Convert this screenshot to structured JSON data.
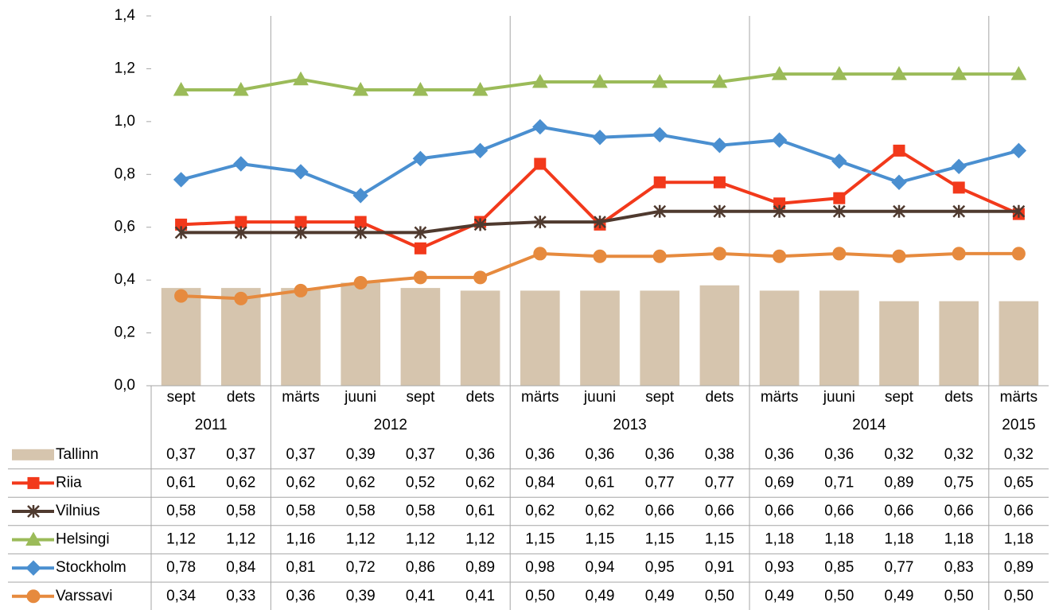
{
  "chart_data": {
    "type": "combo",
    "groups": [
      {
        "label": "2011",
        "categories": [
          "sept",
          "dets"
        ]
      },
      {
        "label": "2012",
        "categories": [
          "märts",
          "juuni",
          "sept",
          "dets"
        ]
      },
      {
        "label": "2013",
        "categories": [
          "märts",
          "juuni",
          "sept",
          "dets"
        ]
      },
      {
        "label": "2014",
        "categories": [
          "märts",
          "juuni",
          "sept",
          "dets"
        ]
      },
      {
        "label": "2015",
        "categories": [
          "märts"
        ]
      }
    ],
    "ylim": [
      0,
      1.4
    ],
    "yticks": [
      {
        "value": 0,
        "label": "0,0"
      },
      {
        "value": 0.2,
        "label": "0,2"
      },
      {
        "value": 0.4,
        "label": "0,4"
      },
      {
        "value": 0.6,
        "label": "0,6"
      },
      {
        "value": 0.8,
        "label": "0,8"
      },
      {
        "value": 1.0,
        "label": "1,0"
      },
      {
        "value": 1.2,
        "label": "1,2"
      },
      {
        "value": 1.4,
        "label": "1,4"
      }
    ],
    "series": [
      {
        "name": "Tallinn",
        "type": "bar",
        "color": "#d6c5ae",
        "values": [
          0.37,
          0.37,
          0.37,
          0.39,
          0.37,
          0.36,
          0.36,
          0.36,
          0.36,
          0.38,
          0.36,
          0.36,
          0.32,
          0.32,
          0.32
        ],
        "value_labels": [
          "0,37",
          "0,37",
          "0,37",
          "0,39",
          "0,37",
          "0,36",
          "0,36",
          "0,36",
          "0,36",
          "0,38",
          "0,36",
          "0,36",
          "0,32",
          "0,32",
          "0,32"
        ]
      },
      {
        "name": "Riia",
        "type": "line",
        "marker": "square",
        "color": "#f2391b",
        "values": [
          0.61,
          0.62,
          0.62,
          0.62,
          0.52,
          0.62,
          0.84,
          0.61,
          0.77,
          0.77,
          0.69,
          0.71,
          0.89,
          0.75,
          0.65
        ],
        "value_labels": [
          "0,61",
          "0,62",
          "0,62",
          "0,62",
          "0,52",
          "0,62",
          "0,84",
          "0,61",
          "0,77",
          "0,77",
          "0,69",
          "0,71",
          "0,89",
          "0,75",
          "0,65"
        ]
      },
      {
        "name": "Vilnius",
        "type": "line",
        "marker": "star",
        "color": "#4f3a2f",
        "values": [
          0.58,
          0.58,
          0.58,
          0.58,
          0.58,
          0.61,
          0.62,
          0.62,
          0.66,
          0.66,
          0.66,
          0.66,
          0.66,
          0.66,
          0.66
        ],
        "value_labels": [
          "0,58",
          "0,58",
          "0,58",
          "0,58",
          "0,58",
          "0,61",
          "0,62",
          "0,62",
          "0,66",
          "0,66",
          "0,66",
          "0,66",
          "0,66",
          "0,66",
          "0,66"
        ]
      },
      {
        "name": "Helsingi",
        "type": "line",
        "marker": "triangle",
        "color": "#9bbb59",
        "values": [
          1.12,
          1.12,
          1.16,
          1.12,
          1.12,
          1.12,
          1.15,
          1.15,
          1.15,
          1.15,
          1.18,
          1.18,
          1.18,
          1.18,
          1.18
        ],
        "value_labels": [
          "1,12",
          "1,12",
          "1,16",
          "1,12",
          "1,12",
          "1,12",
          "1,15",
          "1,15",
          "1,15",
          "1,15",
          "1,18",
          "1,18",
          "1,18",
          "1,18",
          "1,18"
        ]
      },
      {
        "name": "Stockholm",
        "type": "line",
        "marker": "diamond",
        "color": "#4a8fd0",
        "values": [
          0.78,
          0.84,
          0.81,
          0.72,
          0.86,
          0.89,
          0.98,
          0.94,
          0.95,
          0.91,
          0.93,
          0.85,
          0.77,
          0.83,
          0.89
        ],
        "value_labels": [
          "0,78",
          "0,84",
          "0,81",
          "0,72",
          "0,86",
          "0,89",
          "0,98",
          "0,94",
          "0,95",
          "0,91",
          "0,93",
          "0,85",
          "0,77",
          "0,83",
          "0,89"
        ]
      },
      {
        "name": "Varssavi",
        "type": "line",
        "marker": "circle",
        "color": "#e68a3e",
        "values": [
          0.34,
          0.33,
          0.36,
          0.39,
          0.41,
          0.41,
          0.5,
          0.49,
          0.49,
          0.5,
          0.49,
          0.5,
          0.49,
          0.5,
          0.5
        ],
        "value_labels": [
          "0,34",
          "0,33",
          "0,36",
          "0,39",
          "0,41",
          "0,41",
          "0,50",
          "0,49",
          "0,49",
          "0,50",
          "0,49",
          "0,50",
          "0,49",
          "0,50",
          "0,50"
        ]
      }
    ]
  }
}
